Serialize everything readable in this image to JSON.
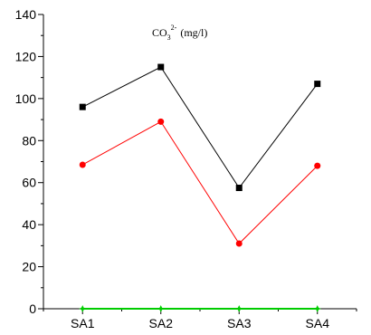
{
  "chart_data": {
    "type": "line",
    "title_parts": {
      "base": "CO",
      "sub": "3",
      "sup": "2-",
      "unit": "(mg/l)"
    },
    "categories": [
      "SA1",
      "SA2",
      "SA3",
      "SA4"
    ],
    "ylim": [
      0,
      140
    ],
    "yticks": [
      0,
      20,
      40,
      60,
      80,
      100,
      120,
      140
    ],
    "grid": false,
    "series": [
      {
        "values": [
          96,
          115,
          57.5,
          107
        ],
        "color": "#000000",
        "marker": "square"
      },
      {
        "values": [
          68.5,
          89,
          31,
          68
        ],
        "color": "#ff0000",
        "marker": "circle"
      },
      {
        "values": [
          0,
          0,
          0,
          0
        ],
        "color": "#00cc00",
        "marker": "star"
      }
    ]
  }
}
